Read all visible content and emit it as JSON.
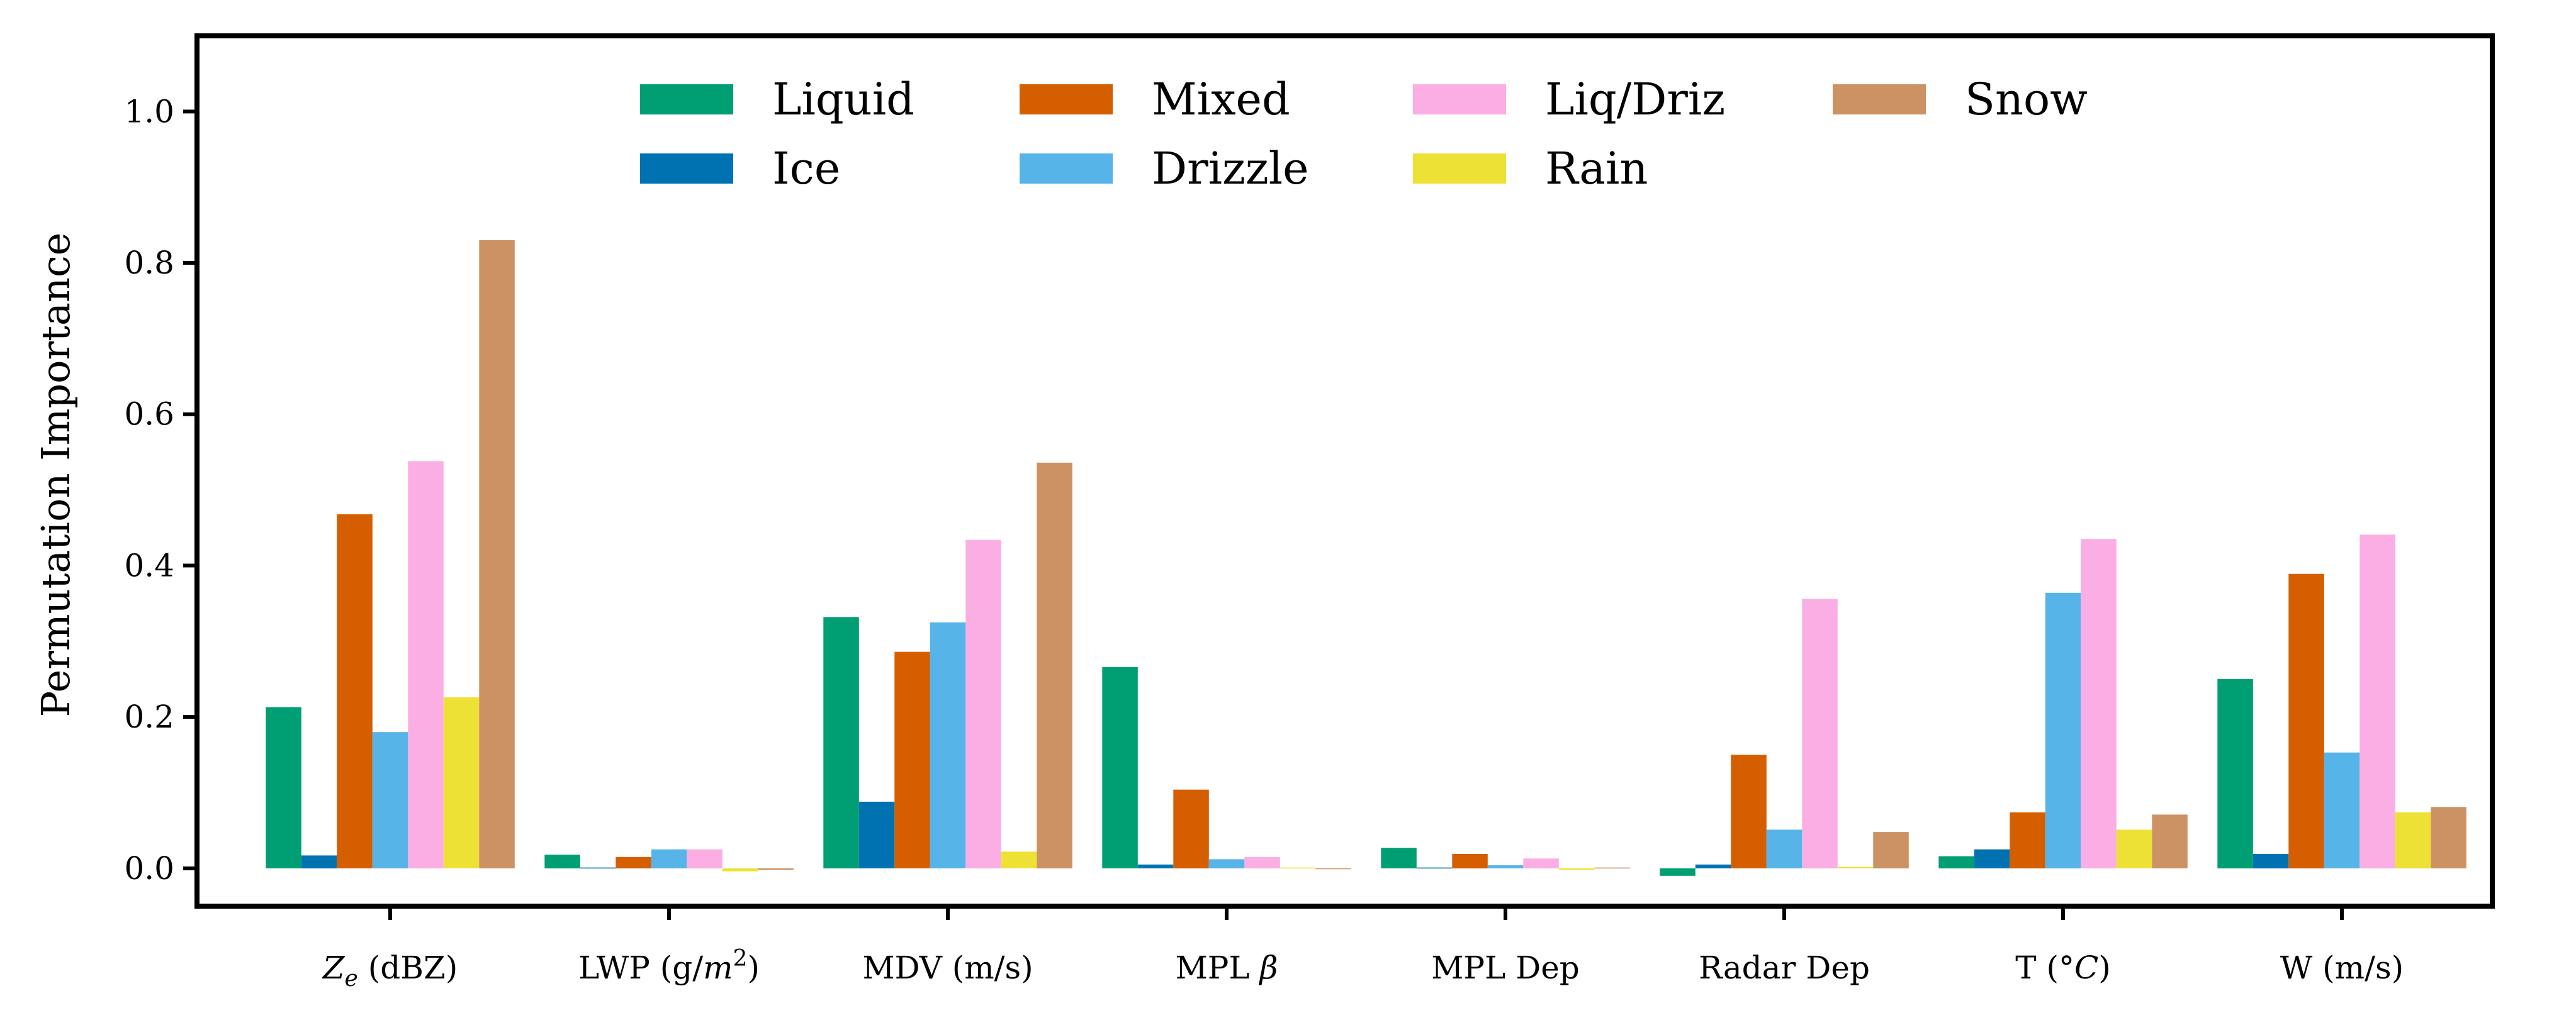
{
  "chart_data": {
    "type": "bar",
    "title": "",
    "xlabel": "",
    "ylabel": "Permutation Importance",
    "ylim": [
      -0.05,
      1.1
    ],
    "yticks": [
      "0.0",
      "0.2",
      "0.4",
      "0.6",
      "0.8",
      "1.0"
    ],
    "ytick_values": [
      0.0,
      0.2,
      0.4,
      0.6,
      0.8,
      1.0
    ],
    "legend_position": "top-center",
    "grid": false,
    "categories": [
      {
        "label": "Z",
        "sub": "e",
        "rest": " (dBZ)"
      },
      {
        "label": "LWP (g/",
        "sup_base": "m",
        "sup": "2",
        "rest": ")"
      },
      {
        "label": "MDV (m/s)"
      },
      {
        "label": "MPL ",
        "italic": "β"
      },
      {
        "label": "MPL Dep"
      },
      {
        "label": "Radar Dep"
      },
      {
        "label": "T (°",
        "italic": "C",
        "rest": ")"
      },
      {
        "label": "W (m/s)"
      }
    ],
    "series": [
      {
        "name": "Liquid",
        "color": "#009E73",
        "values": [
          0.213,
          0.018,
          0.332,
          0.266,
          0.027,
          -0.01,
          0.016,
          0.25
        ]
      },
      {
        "name": "Ice",
        "color": "#0072B2",
        "values": [
          0.017,
          0.001,
          0.088,
          0.005,
          0.001,
          0.005,
          0.025,
          0.019
        ]
      },
      {
        "name": "Mixed",
        "color": "#D55E00",
        "values": [
          0.468,
          0.015,
          0.286,
          0.104,
          0.019,
          0.15,
          0.074,
          0.389
        ]
      },
      {
        "name": "Drizzle",
        "color": "#56B4E9",
        "values": [
          0.18,
          0.025,
          0.325,
          0.012,
          0.004,
          0.051,
          0.364,
          0.153
        ]
      },
      {
        "name": "Liq/Driz",
        "color": "#FBAEE3",
        "values": [
          0.538,
          0.025,
          0.434,
          0.015,
          0.013,
          0.356,
          0.435,
          0.441
        ]
      },
      {
        "name": "Rain",
        "color": "#EEE136",
        "values": [
          0.226,
          -0.004,
          0.022,
          0.001,
          -0.002,
          0.002,
          0.051,
          0.074
        ]
      },
      {
        "name": "Snow",
        "color": "#CC9263",
        "values": [
          0.83,
          -0.002,
          0.536,
          0.0,
          0.001,
          0.048,
          0.071,
          0.081
        ]
      }
    ]
  }
}
